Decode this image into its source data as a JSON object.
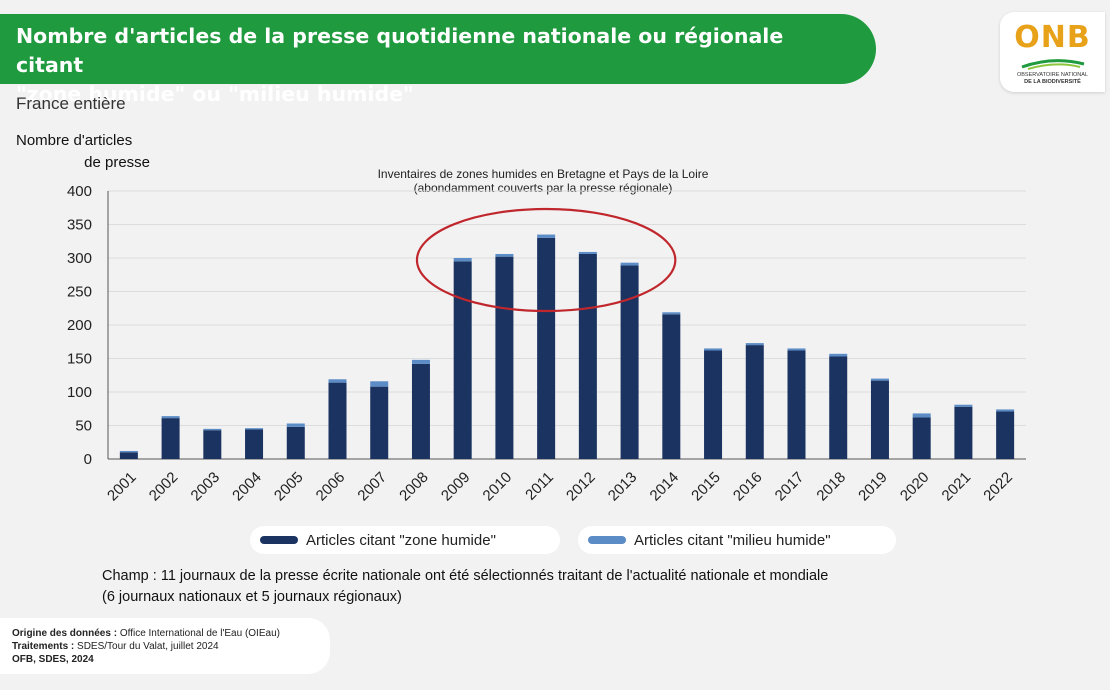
{
  "title": {
    "line1": "Nombre d'articles de la presse quotidienne nationale ou régionale citant",
    "line2": "\"zone humide\" ou \"milieu humide\""
  },
  "logo": {
    "text": "ONB",
    "subtitle_line1": "OBSERVATOIRE NATIONAL",
    "subtitle_line2": "DE LA BIODIVERSITÉ"
  },
  "scope": "France entière",
  "colors": {
    "banner": "#1f9a3e",
    "zone_humide": "#1b3361",
    "milieu_humide": "#5b8cc6",
    "ellipse": "#c0272d"
  },
  "chart_data": {
    "type": "bar",
    "stacked": true,
    "ylabel_line1": "Nombre d'articles",
    "ylabel_line2": "de presse",
    "ylim": [
      0,
      400
    ],
    "yticks": [
      0,
      50,
      100,
      150,
      200,
      250,
      300,
      350,
      400
    ],
    "grid": true,
    "legend_position": "bottom",
    "categories": [
      "2001",
      "2002",
      "2003",
      "2004",
      "2005",
      "2006",
      "2007",
      "2008",
      "2009",
      "2010",
      "2011",
      "2012",
      "2013",
      "2014",
      "2015",
      "2016",
      "2017",
      "2018",
      "2019",
      "2020",
      "2021",
      "2022"
    ],
    "series": [
      {
        "name": "Articles citant \"zone humide\"",
        "values": [
          10,
          61,
          43,
          44,
          48,
          114,
          108,
          142,
          295,
          302,
          330,
          306,
          289,
          216,
          162,
          170,
          162,
          153,
          117,
          62,
          78,
          71
        ]
      },
      {
        "name": "Articles citant \"milieu humide\"",
        "values": [
          2,
          3,
          2,
          2,
          5,
          5,
          8,
          6,
          5,
          4,
          5,
          3,
          4,
          3,
          3,
          3,
          3,
          4,
          3,
          6,
          3,
          3
        ]
      }
    ],
    "annotation": {
      "line1": "Inventaires de zones humides en Bretagne et Pays de la Loire",
      "line2": "(abondamment couverts par la presse régionale)",
      "highlight_range": [
        "2009",
        "2013"
      ]
    }
  },
  "note": {
    "line1": "Champ : 11 journaux de la presse écrite nationale ont été sélectionnés traitant de l'actualité nationale et mondiale",
    "line2": "(6 journaux nationaux et 5 journaux régionaux)"
  },
  "source": {
    "origin_label": "Origine des données :",
    "origin_value": "Office International de l'Eau (OIEau)",
    "treatment_label": "Traitements :",
    "treatment_value": "SDES/Tour du Valat, juillet 2024",
    "credit": "OFB, SDES, 2024"
  }
}
